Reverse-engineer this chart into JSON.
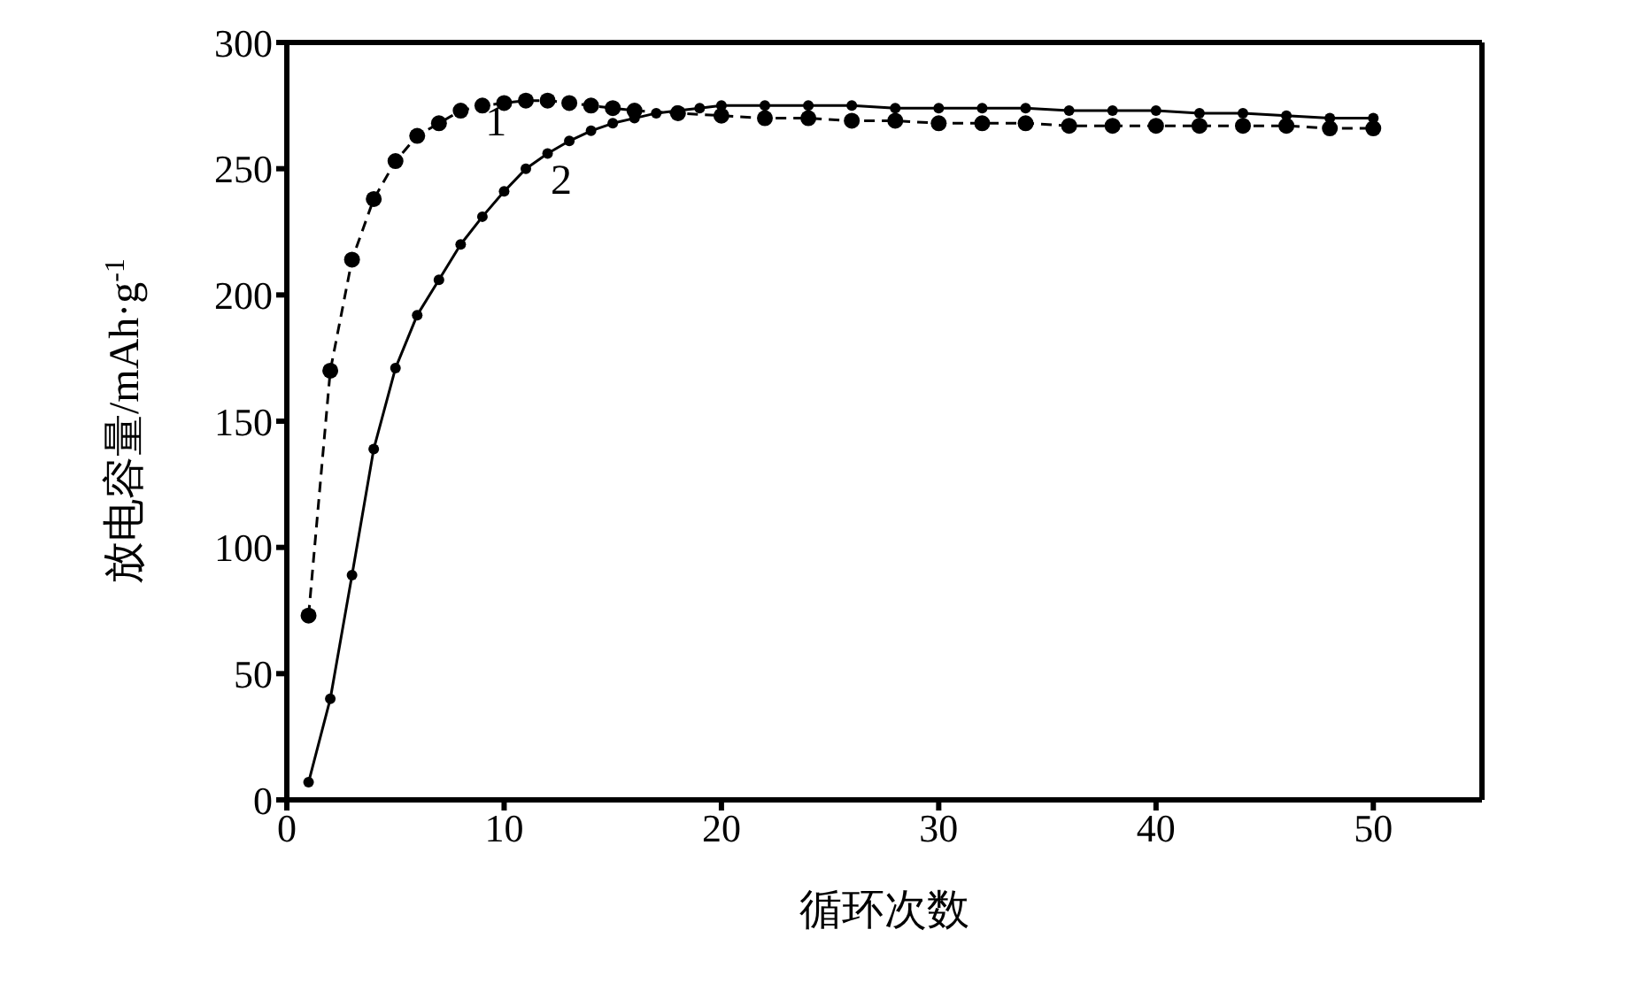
{
  "chart_data": {
    "type": "line",
    "xlabel": "循环次数",
    "ylabel": "放电容量/mAh·g$^{-1}$",
    "xlim": [
      0,
      55
    ],
    "xticks": [
      0,
      10,
      20,
      30,
      40,
      50
    ],
    "ylim": [
      0,
      300
    ],
    "yticks": [
      0,
      50,
      100,
      150,
      200,
      250,
      300
    ],
    "marker": "circle",
    "series": [
      {
        "name": "1",
        "color": "#000000",
        "line_style": "dashed",
        "x": [
          1,
          2,
          3,
          4,
          5,
          6,
          7,
          8,
          9,
          10,
          11,
          12,
          13,
          14,
          15,
          16,
          18,
          20,
          22,
          24,
          26,
          28,
          30,
          32,
          34,
          36,
          38,
          40,
          42,
          44,
          46,
          48,
          50
        ],
        "values": [
          73,
          170,
          214,
          238,
          253,
          263,
          268,
          273,
          275,
          276,
          277,
          277,
          276,
          275,
          274,
          273,
          272,
          271,
          270,
          270,
          269,
          269,
          268,
          268,
          268,
          267,
          267,
          267,
          267,
          267,
          267,
          266,
          266
        ]
      },
      {
        "name": "2",
        "color": "#000000",
        "line_style": "solid",
        "x": [
          1,
          2,
          3,
          4,
          5,
          6,
          7,
          8,
          9,
          10,
          11,
          12,
          13,
          14,
          15,
          16,
          17,
          18,
          19,
          20,
          22,
          24,
          26,
          28,
          30,
          32,
          34,
          36,
          38,
          40,
          42,
          44,
          46,
          48,
          50
        ],
        "values": [
          7,
          40,
          89,
          139,
          171,
          192,
          206,
          220,
          231,
          241,
          250,
          256,
          261,
          265,
          268,
          270,
          272,
          273,
          274,
          275,
          275,
          275,
          275,
          274,
          274,
          274,
          274,
          273,
          273,
          273,
          272,
          272,
          271,
          270,
          270
        ]
      }
    ]
  }
}
